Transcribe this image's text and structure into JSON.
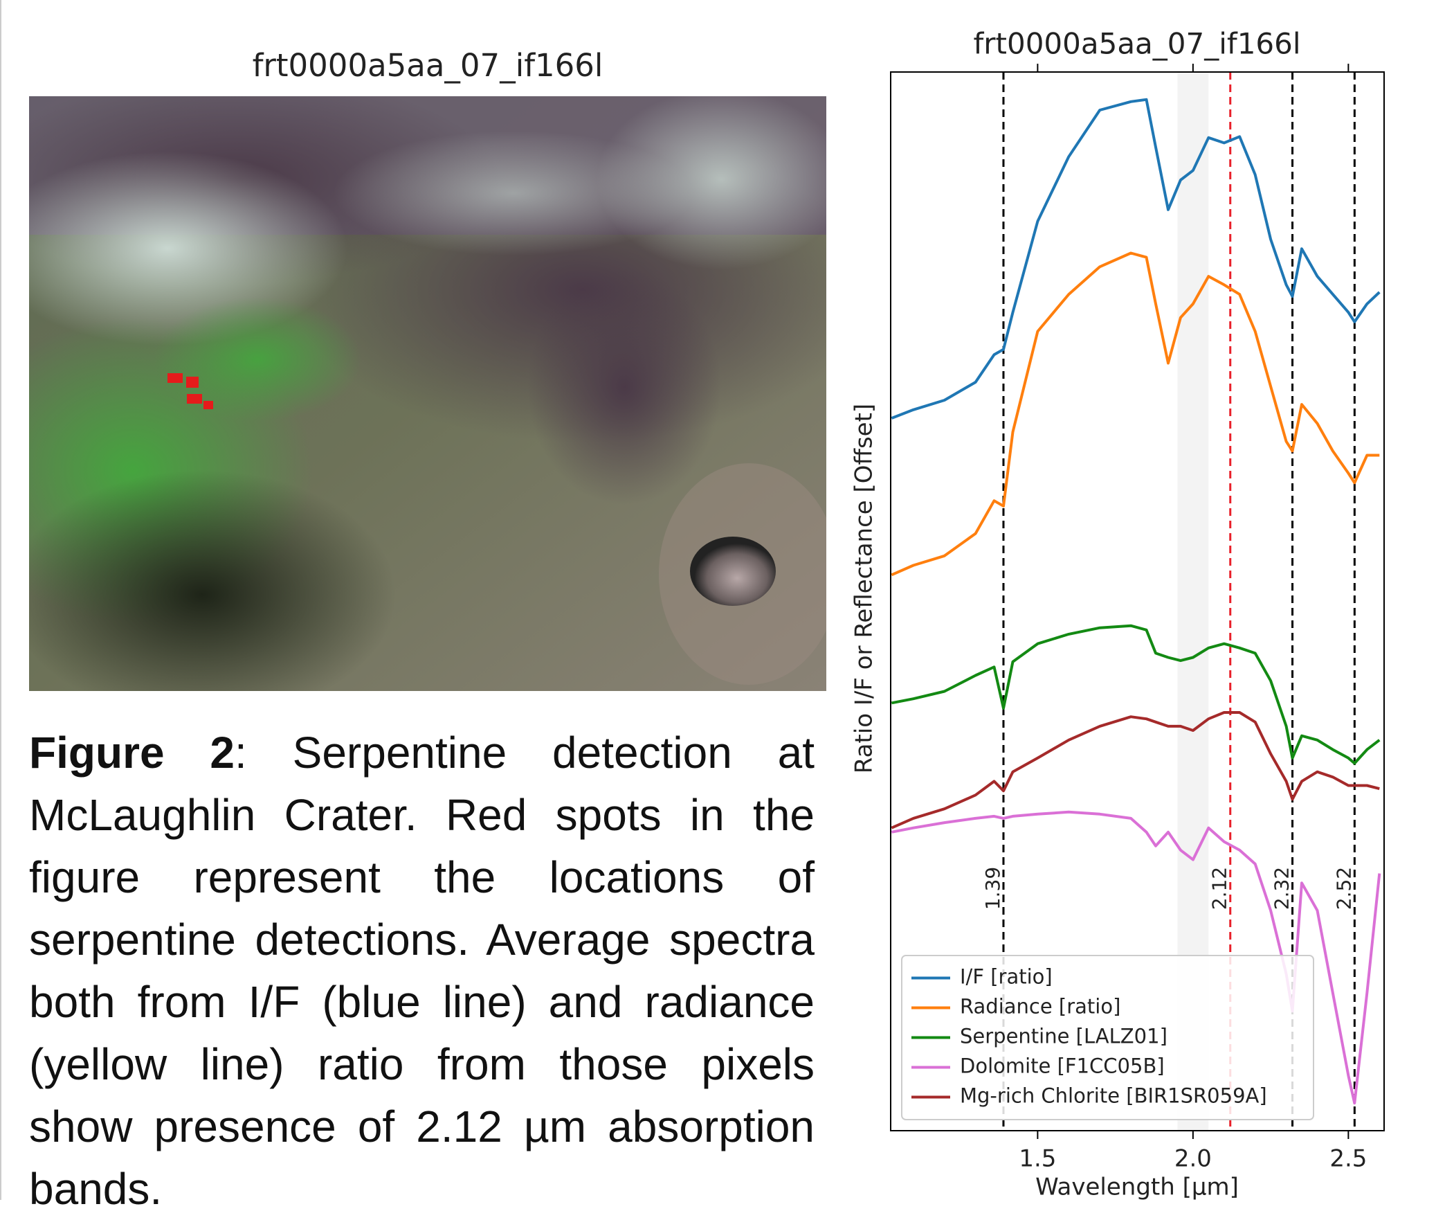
{
  "figure": {
    "image_title": "frt0000a5aa_07_if166l",
    "caption": {
      "label": "Figure 2",
      "text": ": Serpentine detection at McLaughlin Crater. Red spots in the figure represent the locations of serpentine detections. Average spectra both from I/F (blue line) and radiance (yellow line) ratio from those pixels show presence of 2.12 µm absorption bands."
    }
  },
  "chart_data": {
    "type": "line",
    "title": "frt0000a5aa_07_if166l",
    "xlabel": "Wavelength [µm]",
    "ylabel": "Ratio I/F or Reflectance [Offset]",
    "x": [
      1.03,
      1.1,
      1.2,
      1.3,
      1.36,
      1.39,
      1.42,
      1.5,
      1.6,
      1.7,
      1.8,
      1.85,
      1.88,
      1.92,
      1.96,
      2.0,
      2.05,
      2.1,
      2.15,
      2.2,
      2.25,
      2.3,
      2.32,
      2.35,
      2.4,
      2.45,
      2.5,
      2.52,
      2.56,
      2.6
    ],
    "series": [
      {
        "name": "I/F [ratio]",
        "color": "#1f77b4",
        "values": [
          6.73,
          6.81,
          6.9,
          7.07,
          7.33,
          7.38,
          7.73,
          8.59,
          9.2,
          9.64,
          9.72,
          9.74,
          9.29,
          8.7,
          8.98,
          9.07,
          9.38,
          9.33,
          9.39,
          9.03,
          8.42,
          7.99,
          7.88,
          8.33,
          8.07,
          7.9,
          7.73,
          7.64,
          7.81,
          7.92
        ]
      },
      {
        "name": "Radiance [ratio]",
        "color": "#ff7f0e",
        "values": [
          5.25,
          5.34,
          5.43,
          5.64,
          5.95,
          5.9,
          6.6,
          7.55,
          7.9,
          8.16,
          8.29,
          8.25,
          7.81,
          7.25,
          7.68,
          7.81,
          8.07,
          7.99,
          7.9,
          7.55,
          7.03,
          6.51,
          6.42,
          6.86,
          6.68,
          6.42,
          6.21,
          6.12,
          6.38,
          6.38
        ]
      },
      {
        "name": "Serpentine [LALZ01]",
        "color": "#138a13",
        "values": [
          4.04,
          4.08,
          4.15,
          4.3,
          4.38,
          3.99,
          4.43,
          4.6,
          4.69,
          4.75,
          4.77,
          4.73,
          4.51,
          4.47,
          4.44,
          4.47,
          4.56,
          4.6,
          4.56,
          4.51,
          4.25,
          3.82,
          3.52,
          3.73,
          3.69,
          3.6,
          3.52,
          3.47,
          3.6,
          3.69
        ]
      },
      {
        "name": "Dolomite [F1CC05B]",
        "color": "#da70d6",
        "values": [
          2.82,
          2.86,
          2.91,
          2.95,
          2.97,
          2.95,
          2.97,
          2.99,
          3.01,
          2.99,
          2.95,
          2.82,
          2.69,
          2.82,
          2.65,
          2.56,
          2.86,
          2.73,
          2.65,
          2.52,
          2.08,
          1.48,
          1.13,
          2.34,
          2.08,
          1.3,
          0.52,
          0.26,
          1.3,
          2.43
        ]
      },
      {
        "name": "Mg-rich Chlorite [BIR1SR059A]",
        "color": "#a52a2a",
        "values": [
          2.86,
          2.95,
          3.04,
          3.17,
          3.3,
          3.21,
          3.39,
          3.52,
          3.69,
          3.82,
          3.91,
          3.89,
          3.86,
          3.82,
          3.82,
          3.78,
          3.89,
          3.95,
          3.95,
          3.86,
          3.56,
          3.3,
          3.13,
          3.3,
          3.39,
          3.34,
          3.26,
          3.26,
          3.26,
          3.23
        ]
      }
    ],
    "xlim": [
      1.027,
      2.615
    ],
    "ylim": [
      0,
      10
    ],
    "xticks": [
      1.5,
      {
        "value": 2,
        "label": "2.0"
      },
      2.5
    ],
    "vlines": [
      {
        "x": 1.39,
        "color": "#000000"
      },
      {
        "x": 2.12,
        "color": "#e8202a"
      },
      {
        "x": 2.32,
        "color": "#000000"
      },
      {
        "x": 2.52,
        "color": "#000000"
      }
    ],
    "span": [
      1.95,
      2.05
    ],
    "legend": "lower left"
  }
}
